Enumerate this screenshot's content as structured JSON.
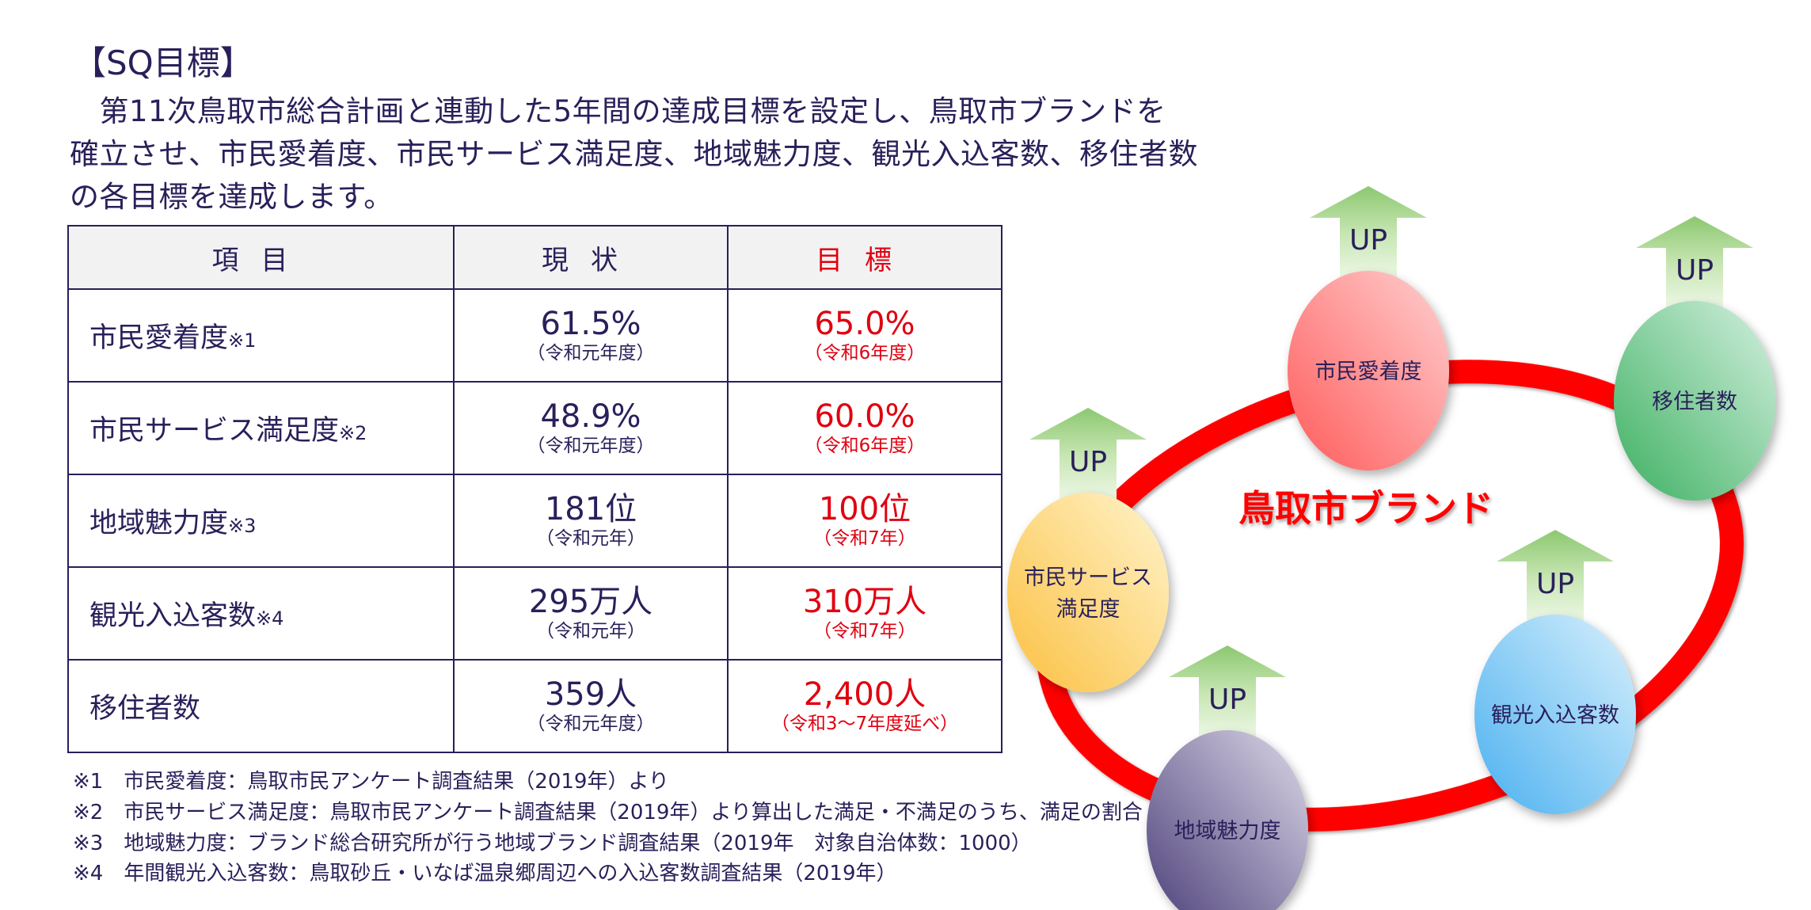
{
  "heading": "【SQ目標】",
  "intro_lines": [
    "　第11次鳥取市総合計画と連動した5年間の達成目標を設定し、鳥取市ブランドを",
    "確立させ、市民愛着度、市民サービス満足度、地域魅力度、観光入込客数、移住者数",
    "の各目標を達成します。"
  ],
  "table": {
    "headers": [
      "項目",
      "現状",
      "目標"
    ],
    "rows": [
      {
        "item": "市民愛着度",
        "note": "※1",
        "current": "61.5%",
        "current_sub": "（令和元年度）",
        "target": "65.0%",
        "target_sub": "（令和6年度）"
      },
      {
        "item": "市民サービス満足度",
        "note": "※2",
        "current": "48.9%",
        "current_sub": "（令和元年度）",
        "target": "60.0%",
        "target_sub": "（令和6年度）"
      },
      {
        "item": "地域魅力度",
        "note": "※3",
        "current": "181位",
        "current_sub": "（令和元年）",
        "target": "100位",
        "target_sub": "（令和7年）"
      },
      {
        "item": "観光入込客数",
        "note": "※4",
        "current": "295万人",
        "current_sub": "（令和元年）",
        "target": "310万人",
        "target_sub": "（令和7年）"
      },
      {
        "item": "移住者数",
        "note": "",
        "current": "359人",
        "current_sub": "（令和元年度）",
        "target": "2,400人",
        "target_sub": "（令和3～7年度延べ）"
      }
    ]
  },
  "footnotes": [
    "※1　市民愛着度：鳥取市民アンケート調査結果（2019年）より",
    "※2　市民サービス満足度：鳥取市民アンケート調査結果（2019年）より算出した満足・不満足のうち、満足の割合",
    "※3　地域魅力度：ブランド総合研究所が行う地域ブランド調査結果（2019年　対象自治体数：1000）",
    "※4　年間観光入込客数：鳥取砂丘・いなば温泉郷周辺への入込客数調査結果（2019年）"
  ],
  "diagram": {
    "center_label": "鳥取市ブランド",
    "arrow_label": "UP",
    "nodes": [
      {
        "id": "attachment",
        "lines": [
          "市民愛着度"
        ],
        "color": "#ff5a5a"
      },
      {
        "id": "migrants",
        "lines": [
          "移住者数"
        ],
        "color": "#3cb060"
      },
      {
        "id": "service",
        "lines": [
          "市民サービス",
          "満足度"
        ],
        "color": "#fbc040"
      },
      {
        "id": "tourists",
        "lines": [
          "観光入込客数"
        ],
        "color": "#4ab0f0"
      },
      {
        "id": "appeal",
        "lines": [
          "地域魅力度"
        ],
        "color": "#4a3e78"
      }
    ],
    "ring_color": "#ff0000",
    "arrow_color": "#8cc870"
  },
  "colors": {
    "text": "#2a1f5a",
    "accent_red": "#e00010"
  }
}
